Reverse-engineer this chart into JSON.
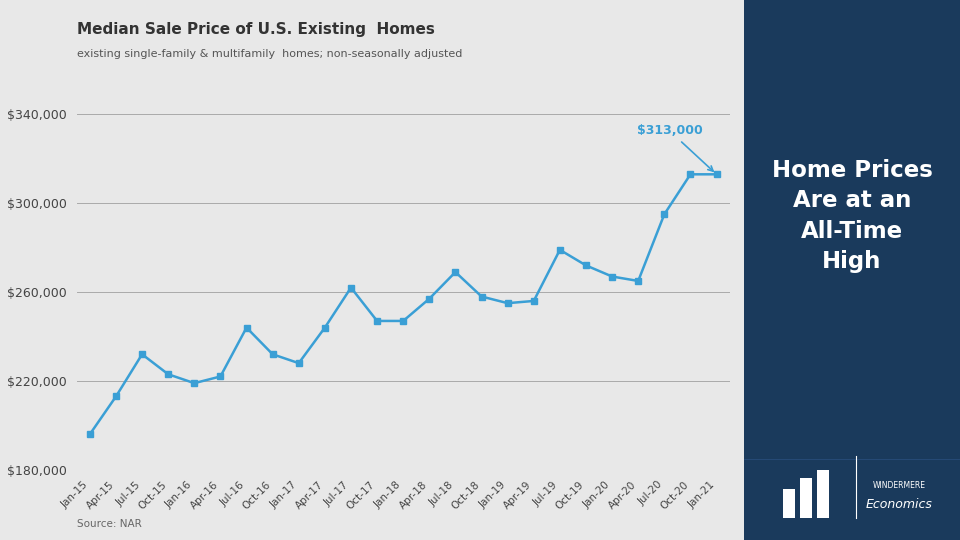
{
  "title": "Median Sale Price of U.S. Existing  Homes",
  "subtitle": "existing single-family & multifamily  homes; non-seasonally adjusted",
  "source": "Source: NAR",
  "sidebar_title": "Home Prices\nAre at an\nAll-Time\nHigh",
  "sidebar_color": "#1a3a5c",
  "sidebar_logo_text": "WINDERMERE\nEconomics",
  "line_color": "#3a9fd5",
  "annotation_color": "#3a9fd5",
  "annotation_text": "$313,000",
  "chart_bg": "#e8e8e8",
  "ylim": [
    180000,
    355000
  ],
  "yticks": [
    180000,
    200000,
    220000,
    240000,
    260000,
    280000,
    300000,
    320000,
    340000
  ],
  "labels": [
    "Jan-15",
    "Apr-15",
    "Jul-15",
    "Oct-15",
    "Jan-16",
    "Apr-16",
    "Jul-16",
    "Oct-16",
    "Jan-17",
    "Apr-17",
    "Jul-17",
    "Oct-17",
    "Jan-18",
    "Apr-18",
    "Jul-18",
    "Oct-18",
    "Jan-19",
    "Apr-19",
    "Jul-19",
    "Oct-19",
    "Jan-20",
    "Apr-20",
    "Jul-20",
    "Oct-20",
    "Jan-21"
  ],
  "values": [
    196000,
    213000,
    232000,
    223000,
    219000,
    222000,
    244000,
    232000,
    228000,
    244000,
    262000,
    247000,
    247000,
    257000,
    269000,
    258000,
    255000,
    256000,
    279000,
    272000,
    267000,
    265000,
    295000,
    313000,
    313000
  ]
}
